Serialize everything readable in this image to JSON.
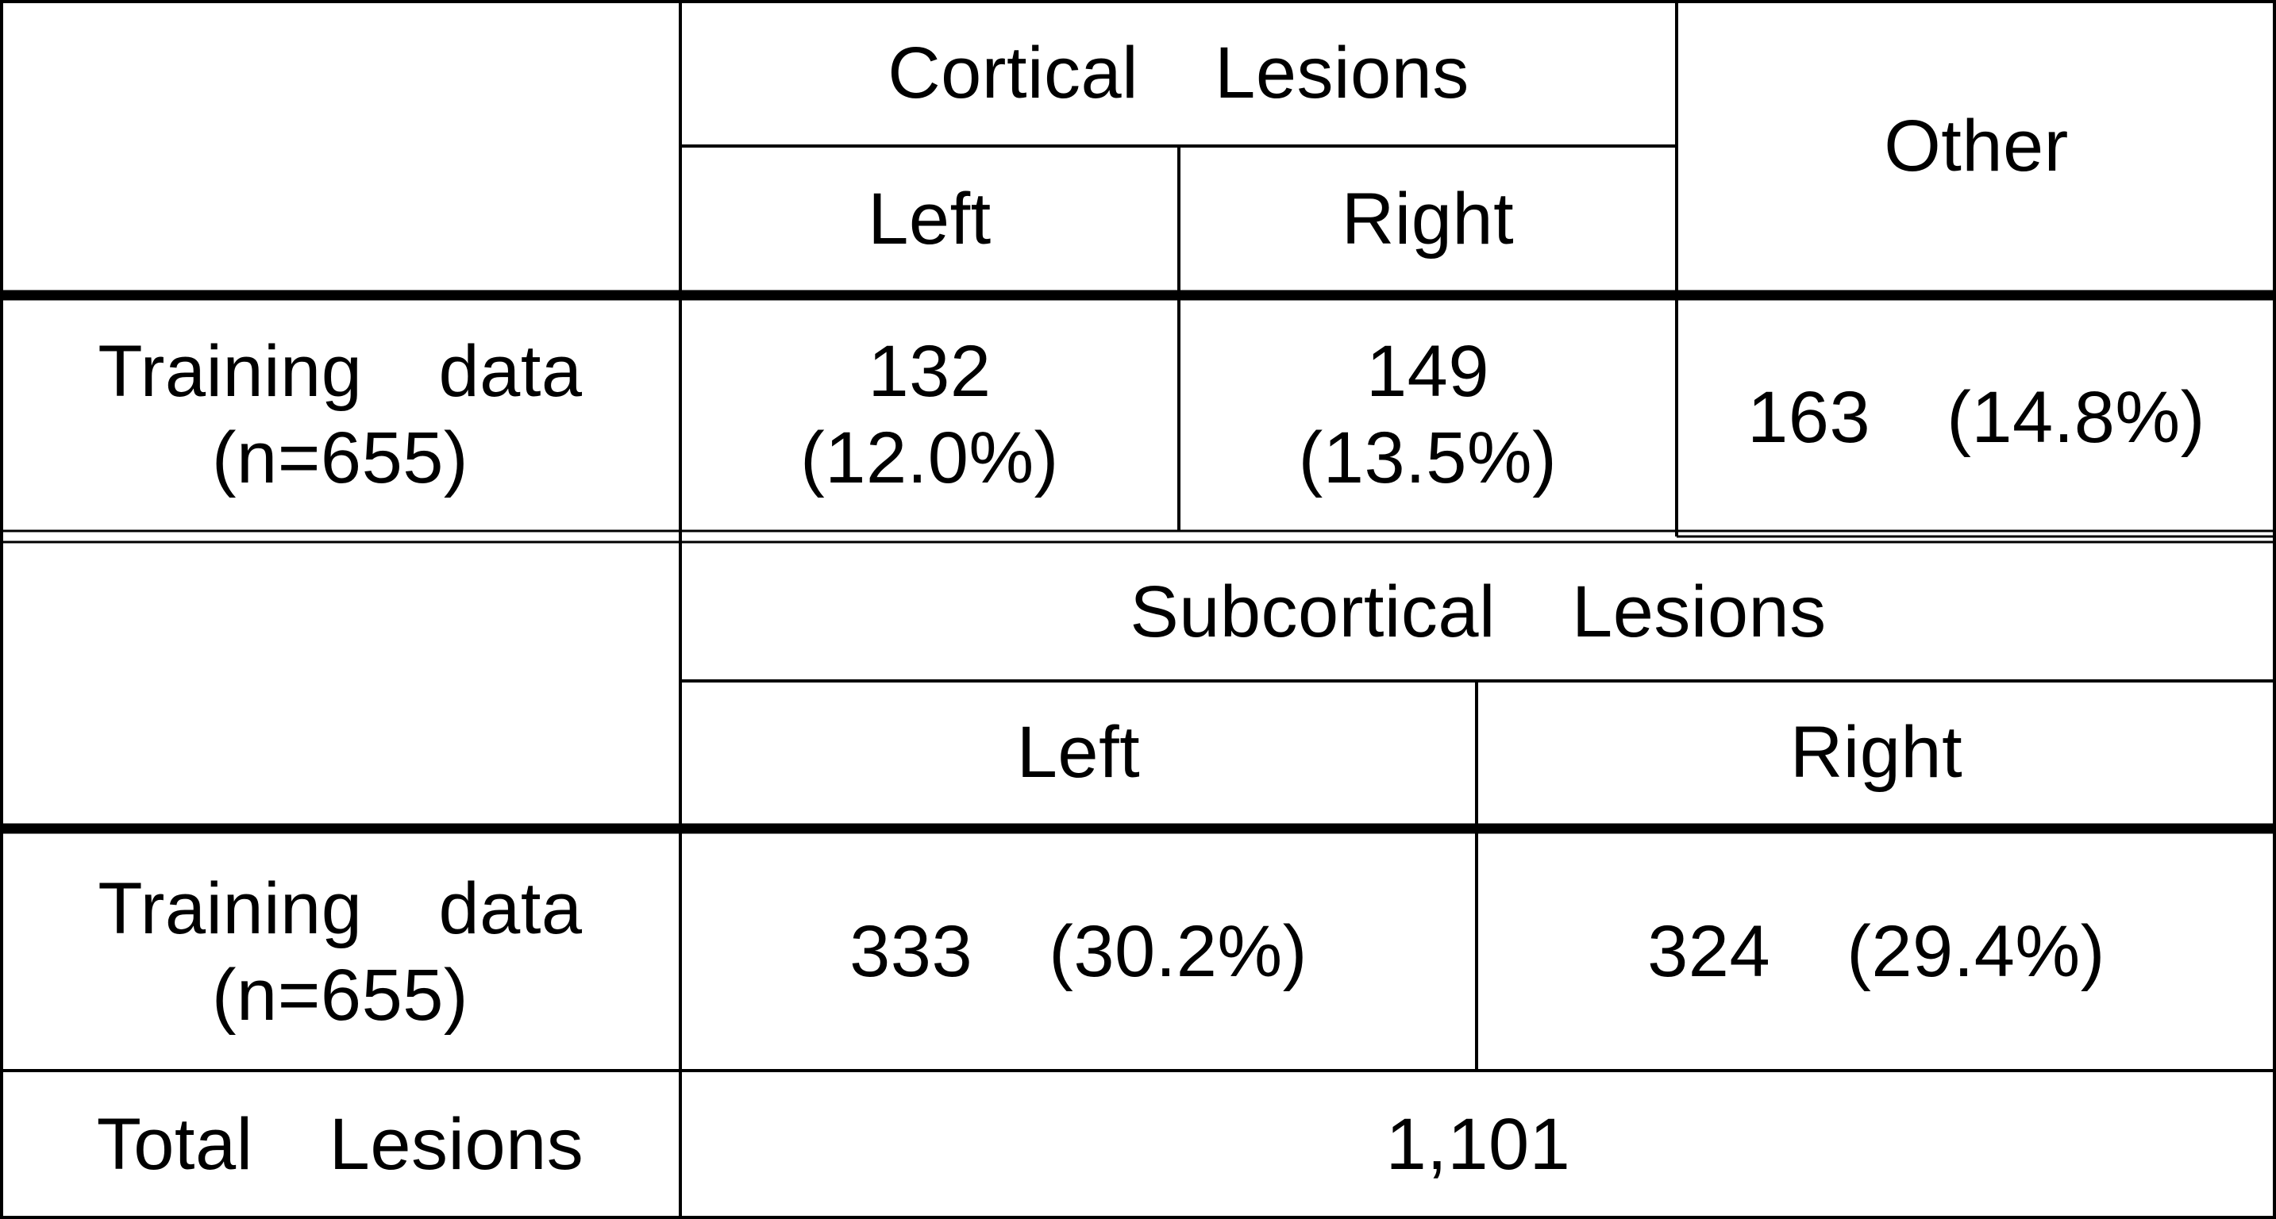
{
  "table": {
    "cortical": {
      "group_header": "Cortical  Lesions",
      "left_header": "Left",
      "right_header": "Right",
      "other_header": "Other",
      "row_label_line1": "Training  data",
      "row_label_line2": "(n=655)",
      "left_value_line1": "132",
      "left_value_line2": "(12.0%)",
      "right_value_line1": "149",
      "right_value_line2": "(13.5%)",
      "other_value": "163  (14.8%)"
    },
    "subcortical": {
      "group_header": "Subcortical  Lesions",
      "left_header": "Left",
      "right_header": "Right",
      "row_label_line1": "Training  data",
      "row_label_line2": "(n=655)",
      "left_value": "333  (30.2%)",
      "right_value": "324  (29.4%)"
    },
    "total": {
      "label": "Total  Lesions",
      "value": "1,101"
    }
  }
}
